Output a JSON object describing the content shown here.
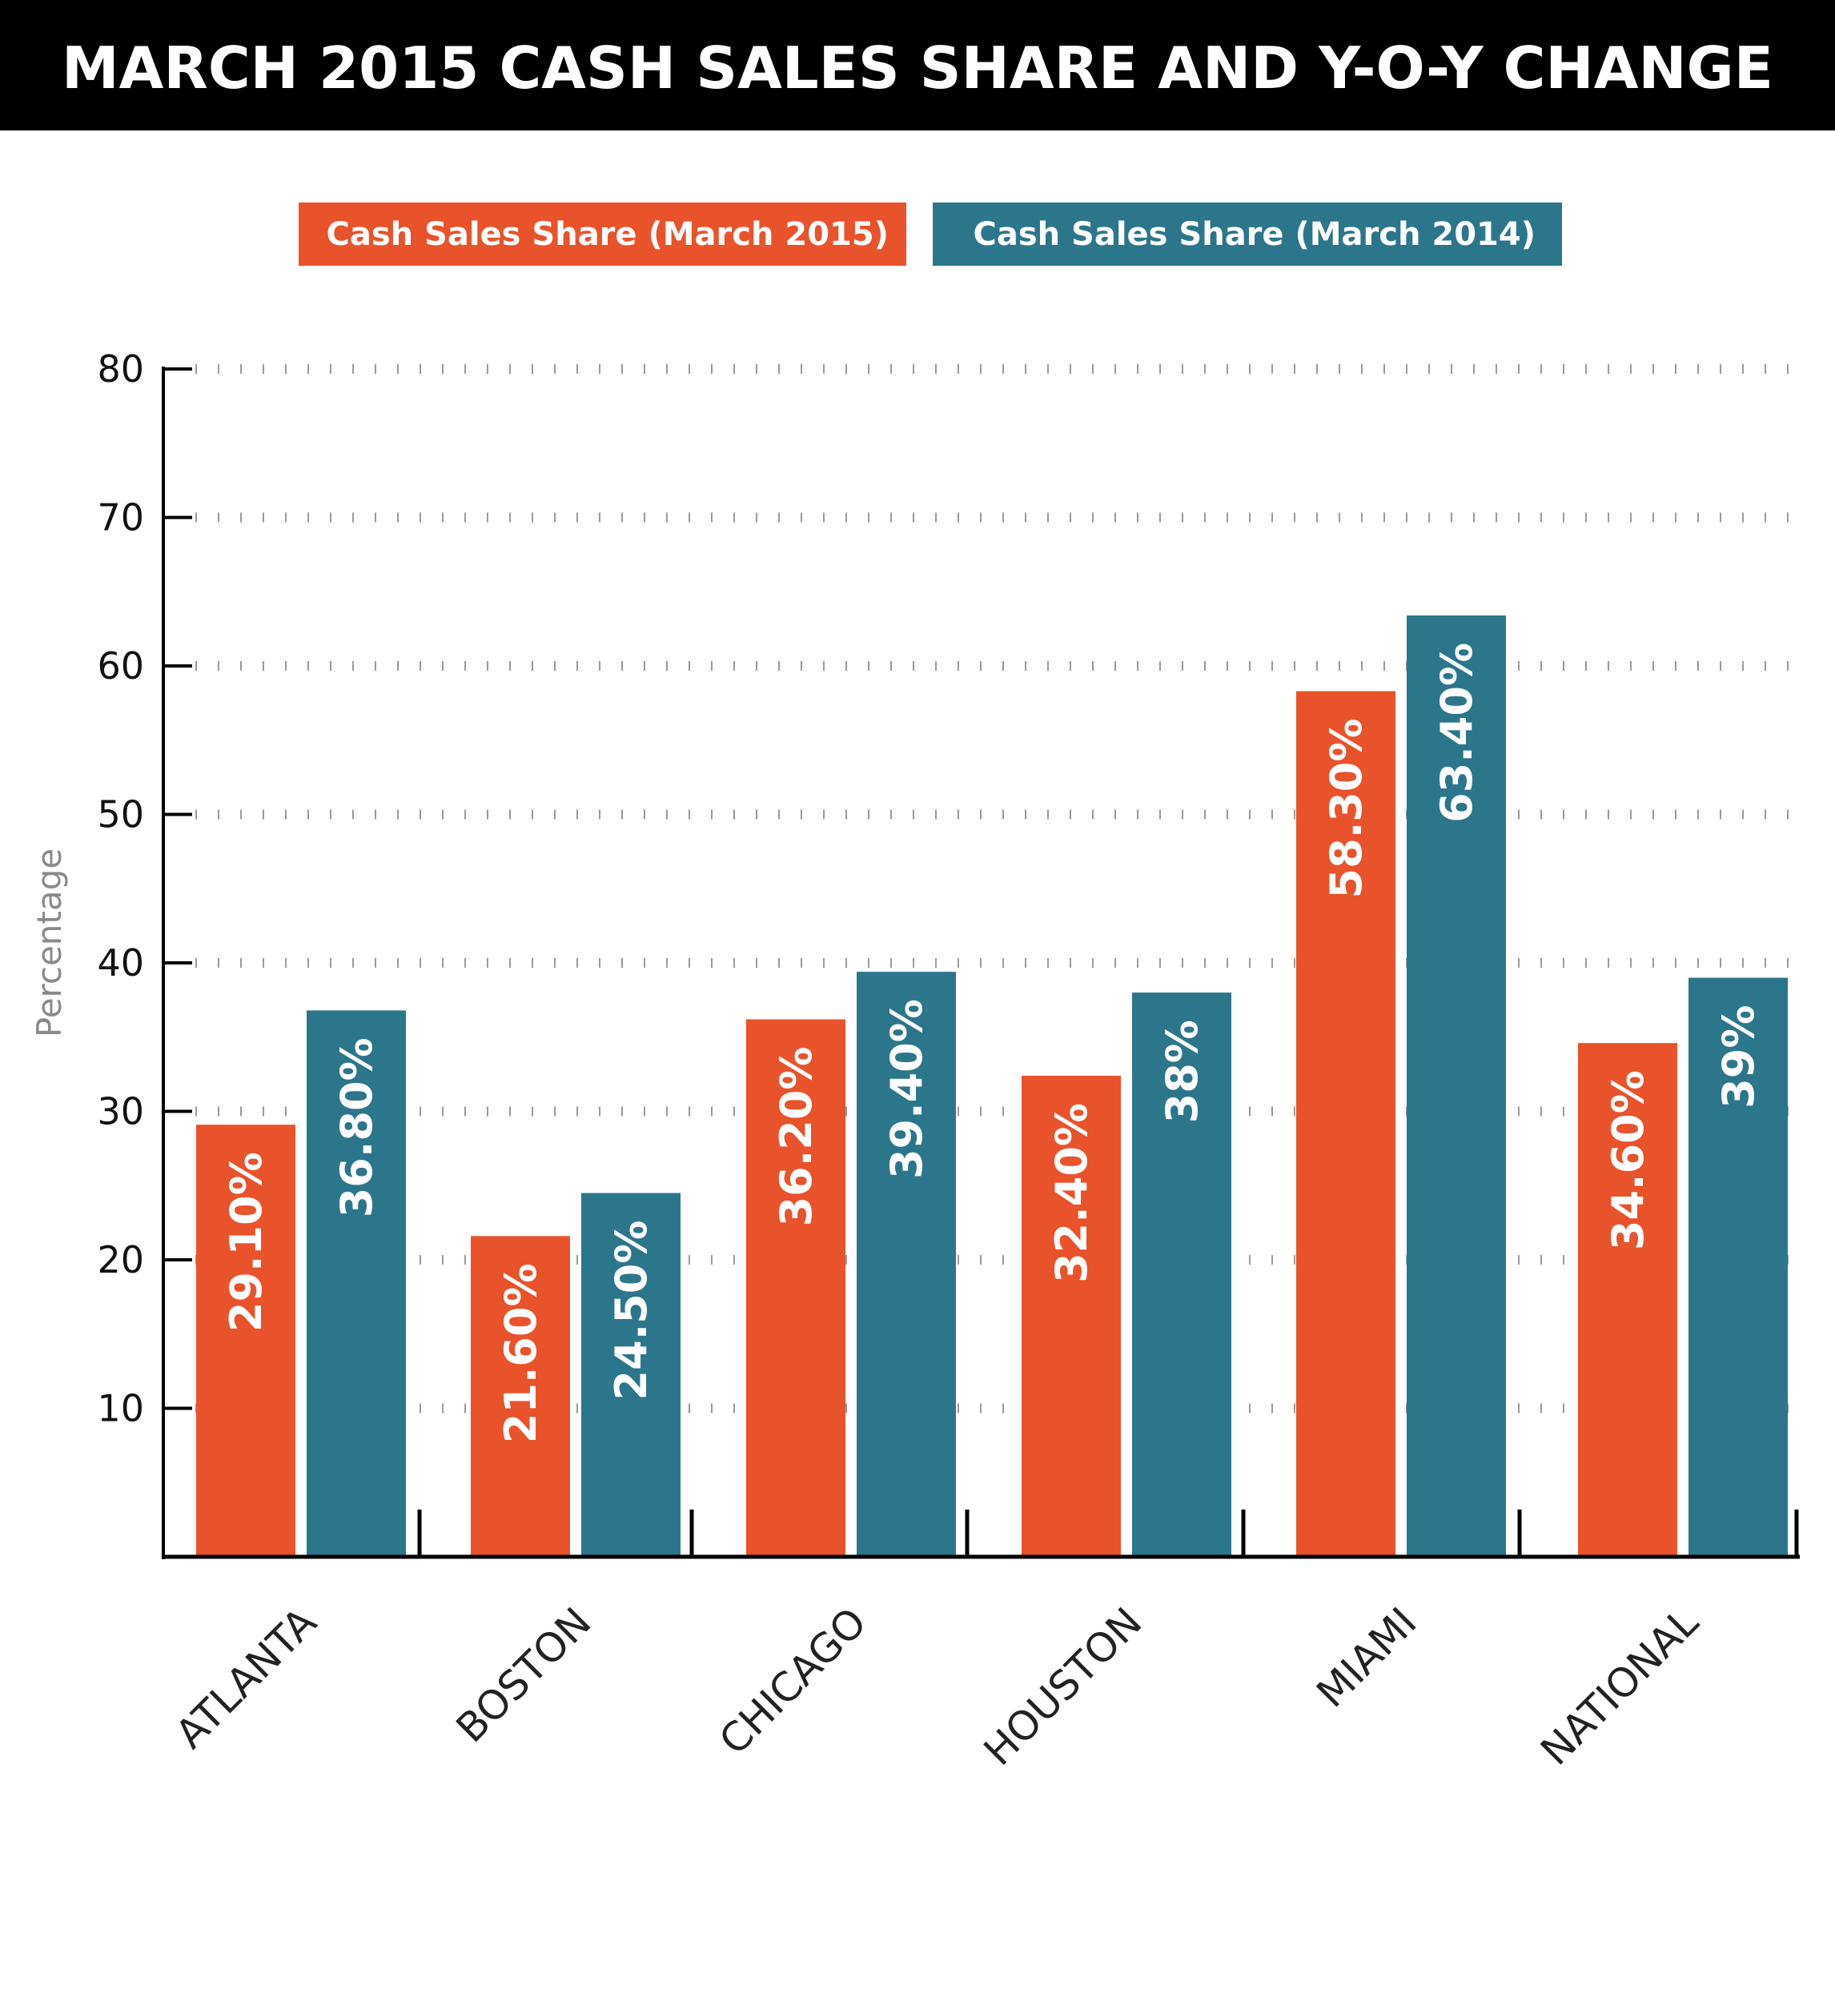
{
  "chart_data": {
    "type": "bar",
    "title": "MARCH 2015 CASH SALES SHARE AND Y-O-Y CHANGE",
    "xlabel": "",
    "ylabel": "Percentage",
    "ylim": [
      0,
      80
    ],
    "yticks": [
      10,
      20,
      30,
      40,
      50,
      60,
      70,
      80
    ],
    "grid": true,
    "legend_position": "top",
    "categories": [
      "ATLANTA",
      "BOSTON",
      "CHICAGO",
      "HOUSTON",
      "MIAMI",
      "NATIONAL"
    ],
    "series": [
      {
        "name": "Cash Sales Share (March 2015)",
        "color": "#e8532c",
        "values": [
          29.1,
          21.6,
          36.2,
          32.4,
          58.3,
          34.6
        ],
        "labels": [
          "29.10%",
          "21.60%",
          "36.20%",
          "32.40%",
          "58.30%",
          "34.60%"
        ]
      },
      {
        "name": "Cash Sales Share (March 2014)",
        "color": "#2c768c",
        "values": [
          36.8,
          24.5,
          39.4,
          38,
          63.4,
          39
        ],
        "labels": [
          "36.80%",
          "24.50%",
          "39.40%",
          "38%",
          "63.40%",
          "39%"
        ]
      }
    ]
  }
}
